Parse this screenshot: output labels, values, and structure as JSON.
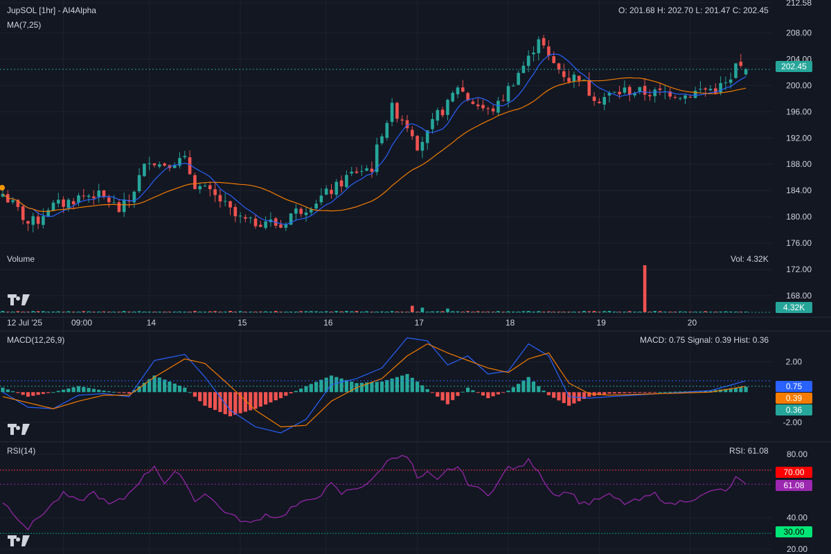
{
  "header": {
    "symbol": "JupSOL [1hr] - AI4Alpha",
    "ma_label": "MA(7,25)",
    "ohlc": "O: 201.68 H: 202.70 L: 201.47 C: 202.45"
  },
  "volume_panel": {
    "label": "Volume",
    "value_text": "Vol: 4.32K",
    "badge": "4.32K"
  },
  "macd_panel": {
    "label": "MACD(12,26,9)",
    "value_text": "MACD: 0.75 Signal: 0.39 Hist: 0.36",
    "badges": {
      "macd": "0.75",
      "signal": "0.39",
      "hist": "0.36"
    }
  },
  "rsi_panel": {
    "label": "RSI(14)",
    "value_text": "RSI: 61.08",
    "badges": {
      "rsi": "61.08",
      "upper": "70.00",
      "lower": "30.00"
    }
  },
  "price_badge": "202.45",
  "colors": {
    "background": "#131722",
    "up": "#26a69a",
    "down": "#ef5350",
    "ma7": "#2962ff",
    "ma25": "#f57c00",
    "signal": "#f57c00",
    "rsi": "#9c27b0",
    "rsi_upper": "#f23645",
    "rsi_lower": "#089981",
    "macd_badge": "#2962ff",
    "signal_badge": "#f57c00",
    "hist_badge": "#26a69a",
    "rsi_badge": "#9c27b0",
    "upper_badge": "#ff0000",
    "lower_badge": "#00e676"
  },
  "chart_data": [
    {
      "type": "candlestick",
      "title": "JupSOL [1hr] - AI4Alpha",
      "indicators": [
        "MA(7)",
        "MA(25)"
      ],
      "y_ticks": [
        "212.58",
        "208.00",
        "204.00",
        "200.00",
        "196.00",
        "192.00",
        "188.00",
        "184.00",
        "180.00",
        "176.00",
        "172.00",
        "168.00"
      ],
      "ylim": [
        166,
        212.58
      ],
      "x_ticks": [
        "12 Jul '25",
        "09:00",
        "14",
        "15",
        "16",
        "17",
        "18",
        "19",
        "20"
      ],
      "last_close": 202.45,
      "close_path": [
        [
          0,
          183.5
        ],
        [
          3,
          181
        ],
        [
          5,
          179
        ],
        [
          7,
          179.5
        ],
        [
          9,
          181.5
        ],
        [
          12,
          182
        ],
        [
          15,
          183
        ],
        [
          18,
          183.5
        ],
        [
          21,
          182.5
        ],
        [
          23,
          181
        ],
        [
          25,
          182.5
        ],
        [
          27,
          186
        ],
        [
          29,
          189
        ],
        [
          31,
          188
        ],
        [
          34,
          188.5
        ],
        [
          36,
          188.5
        ],
        [
          38,
          185
        ],
        [
          40,
          184
        ],
        [
          43,
          182.5
        ],
        [
          46,
          180
        ],
        [
          49,
          179
        ],
        [
          52,
          179.5
        ],
        [
          55,
          178.5
        ],
        [
          57,
          180.5
        ],
        [
          60,
          181.5
        ],
        [
          63,
          183
        ],
        [
          66,
          184.5
        ],
        [
          68,
          186
        ],
        [
          70,
          187
        ],
        [
          73,
          187.5
        ],
        [
          75,
          193
        ],
        [
          77,
          196.5
        ],
        [
          79,
          195
        ],
        [
          81,
          193
        ],
        [
          82,
          191
        ],
        [
          84,
          192.5
        ],
        [
          86,
          195.5
        ],
        [
          88,
          197
        ],
        [
          90,
          200
        ],
        [
          92,
          198
        ],
        [
          94,
          197
        ],
        [
          96,
          196
        ],
        [
          98,
          197
        ],
        [
          100,
          199.5
        ],
        [
          102,
          202
        ],
        [
          104,
          204
        ],
        [
          106,
          207.5
        ],
        [
          108,
          204
        ],
        [
          110,
          202.5
        ],
        [
          112,
          201
        ],
        [
          114,
          201.5
        ],
        [
          116,
          199
        ],
        [
          118,
          198
        ],
        [
          120,
          198.5
        ],
        [
          123,
          199.2
        ],
        [
          126,
          199
        ],
        [
          129,
          198.8
        ],
        [
          132,
          199
        ],
        [
          135,
          198.5
        ],
        [
          138,
          199.3
        ],
        [
          141,
          199.5
        ],
        [
          144,
          200.5
        ],
        [
          145,
          203
        ],
        [
          147,
          202.45
        ]
      ]
    },
    {
      "type": "bar",
      "title": "Volume",
      "last_value": "4.32K",
      "notable_spikes": [
        {
          "bar": 127,
          "relative_height": 1.0
        },
        {
          "bar": 81,
          "relative_height": 0.14
        },
        {
          "bar": 83,
          "relative_height": 0.1
        },
        {
          "bar": 88,
          "relative_height": 0.08
        }
      ]
    },
    {
      "type": "line",
      "title": "MACD(12,26,9)",
      "y_ticks": [
        "2.00",
        "-2.00"
      ],
      "ylim": [
        -3.2,
        3.5
      ],
      "macd_path": [
        [
          0,
          0.0
        ],
        [
          5,
          -1.0
        ],
        [
          10,
          -1.1
        ],
        [
          15,
          -0.2
        ],
        [
          20,
          -0.1
        ],
        [
          25,
          -0.3
        ],
        [
          30,
          2.1
        ],
        [
          36,
          2.5
        ],
        [
          40,
          1.0
        ],
        [
          45,
          -1.2
        ],
        [
          50,
          -2.3
        ],
        [
          55,
          -2.7
        ],
        [
          60,
          -1.8
        ],
        [
          65,
          0.5
        ],
        [
          70,
          0.9
        ],
        [
          75,
          1.6
        ],
        [
          80,
          3.6
        ],
        [
          84,
          3.4
        ],
        [
          88,
          1.8
        ],
        [
          92,
          2.4
        ],
        [
          96,
          1.2
        ],
        [
          100,
          1.4
        ],
        [
          104,
          3.2
        ],
        [
          108,
          2.4
        ],
        [
          112,
          -0.3
        ],
        [
          116,
          -0.4
        ],
        [
          120,
          -0.3
        ],
        [
          130,
          -0.1
        ],
        [
          140,
          0.1
        ],
        [
          147,
          0.75
        ]
      ],
      "signal_path": [
        [
          0,
          -0.3
        ],
        [
          5,
          -0.7
        ],
        [
          10,
          -1.1
        ],
        [
          15,
          -0.6
        ],
        [
          20,
          -0.2
        ],
        [
          25,
          -0.2
        ],
        [
          30,
          1.0
        ],
        [
          36,
          2.2
        ],
        [
          40,
          1.9
        ],
        [
          45,
          0.4
        ],
        [
          50,
          -1.2
        ],
        [
          55,
          -2.3
        ],
        [
          60,
          -2.2
        ],
        [
          65,
          -0.6
        ],
        [
          70,
          0.3
        ],
        [
          75,
          0.9
        ],
        [
          80,
          2.4
        ],
        [
          84,
          3.2
        ],
        [
          88,
          2.6
        ],
        [
          92,
          2.1
        ],
        [
          96,
          1.6
        ],
        [
          100,
          1.3
        ],
        [
          104,
          2.2
        ],
        [
          108,
          2.6
        ],
        [
          112,
          0.6
        ],
        [
          116,
          -0.1
        ],
        [
          120,
          -0.2
        ],
        [
          130,
          -0.1
        ],
        [
          140,
          0.0
        ],
        [
          147,
          0.39
        ]
      ],
      "last": {
        "macd": 0.75,
        "signal": 0.39,
        "hist": 0.36
      }
    },
    {
      "type": "line",
      "title": "RSI(14)",
      "y_ticks": [
        "80.00",
        "40.00",
        "20.00"
      ],
      "ylim": [
        17,
        87
      ],
      "levels": [
        70,
        30
      ],
      "rsi_path": [
        [
          0,
          50
        ],
        [
          3,
          40
        ],
        [
          5,
          33
        ],
        [
          7,
          40
        ],
        [
          9,
          46
        ],
        [
          12,
          55
        ],
        [
          15,
          50
        ],
        [
          18,
          56
        ],
        [
          21,
          48
        ],
        [
          24,
          52
        ],
        [
          27,
          63
        ],
        [
          30,
          73
        ],
        [
          32,
          62
        ],
        [
          34,
          68
        ],
        [
          36,
          64
        ],
        [
          38,
          50
        ],
        [
          40,
          56
        ],
        [
          43,
          46
        ],
        [
          46,
          40
        ],
        [
          49,
          36
        ],
        [
          52,
          42
        ],
        [
          55,
          40
        ],
        [
          57,
          46
        ],
        [
          60,
          50
        ],
        [
          63,
          55
        ],
        [
          65,
          61
        ],
        [
          67,
          55
        ],
        [
          69,
          58
        ],
        [
          71,
          60
        ],
        [
          73,
          63
        ],
        [
          75,
          72
        ],
        [
          77,
          78
        ],
        [
          79,
          80
        ],
        [
          81,
          74
        ],
        [
          82,
          64
        ],
        [
          84,
          68
        ],
        [
          86,
          63
        ],
        [
          88,
          70
        ],
        [
          90,
          72
        ],
        [
          92,
          62
        ],
        [
          94,
          58
        ],
        [
          96,
          55
        ],
        [
          98,
          62
        ],
        [
          100,
          72
        ],
        [
          102,
          71
        ],
        [
          104,
          76
        ],
        [
          106,
          70
        ],
        [
          108,
          58
        ],
        [
          110,
          54
        ],
        [
          112,
          57
        ],
        [
          114,
          50
        ],
        [
          116,
          49
        ],
        [
          118,
          52
        ],
        [
          120,
          54
        ],
        [
          123,
          49
        ],
        [
          126,
          51
        ],
        [
          129,
          55
        ],
        [
          132,
          48
        ],
        [
          135,
          51
        ],
        [
          138,
          53
        ],
        [
          141,
          58
        ],
        [
          143,
          56
        ],
        [
          145,
          65
        ],
        [
          147,
          61.08
        ]
      ],
      "last": 61.08
    }
  ]
}
